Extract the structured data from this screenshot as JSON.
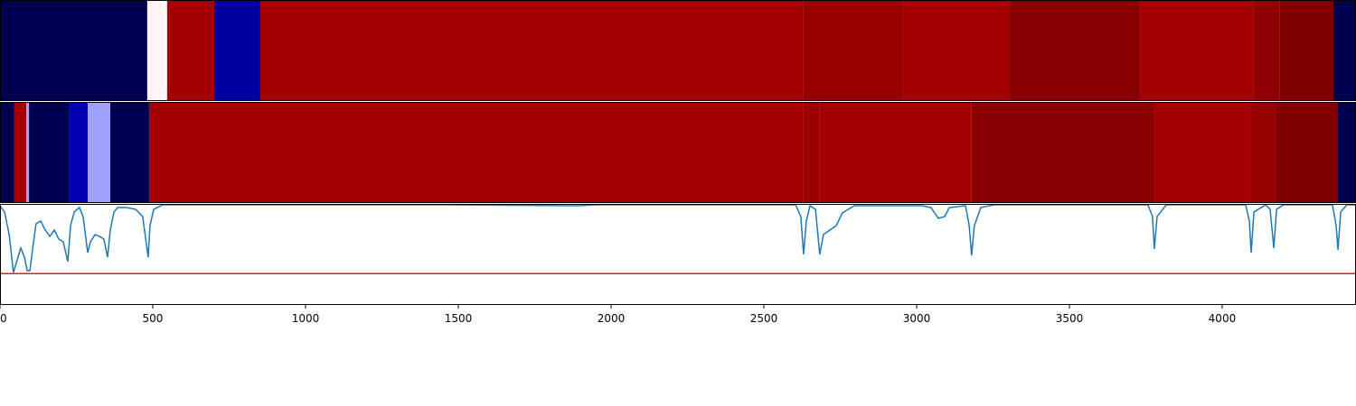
{
  "chart_data": [
    {
      "type": "strip",
      "xlim": [
        0,
        4438
      ],
      "x_edges": [
        0,
        482,
        547,
        701,
        852,
        2630,
        2953,
        3302,
        3731,
        4101,
        4189,
        4364,
        4438
      ],
      "colors": [
        "#000050",
        "#fff5f5",
        "#a50000",
        "#0000a0",
        "#a50000",
        "#990000",
        "#a50000",
        "#8a0000",
        "#a50000",
        "#900000",
        "#800000",
        "#000050"
      ]
    },
    {
      "type": "strip",
      "xlim": [
        0,
        4438
      ],
      "x_edges": [
        0,
        47,
        86,
        95,
        225,
        287,
        361,
        488,
        2630,
        2683,
        3180,
        3778,
        4092,
        4172,
        4379,
        4438
      ],
      "colors": [
        "#000050",
        "#a50000",
        "#a0a0ff",
        "#000050",
        "#0000b0",
        "#a0a0ff",
        "#000050",
        "#a50000",
        "#9a0000",
        "#a50000",
        "#8a0000",
        "#a50000",
        "#950000",
        "#800000",
        "#000050"
      ]
    },
    {
      "type": "line",
      "xlim": [
        0,
        4438
      ],
      "ylim": [
        0,
        1
      ],
      "xticks": [
        0,
        500,
        1000,
        1500,
        2000,
        2500,
        3000,
        3500,
        4000
      ],
      "threshold": 0.31,
      "threshold_color": "#e41a1c",
      "series": [
        {
          "color": "#1f77b4",
          "x": [
            0,
            15,
            30,
            44,
            59,
            68,
            80,
            89,
            98,
            109,
            118,
            133,
            148,
            163,
            178,
            192,
            207,
            222,
            231,
            243,
            260,
            272,
            287,
            296,
            311,
            325,
            340,
            352,
            361,
            373,
            385,
            414,
            444,
            467,
            479,
            485,
            491,
            503,
            533,
            888,
            1479,
            1893,
            1953,
            2604,
            2621,
            2630,
            2639,
            2651,
            2669,
            2683,
            2695,
            2716,
            2737,
            2757,
            2796,
            3018,
            3047,
            3071,
            3092,
            3107,
            3160,
            3172,
            3180,
            3189,
            3210,
            3254,
            3757,
            3772,
            3778,
            3787,
            3817,
            4077,
            4089,
            4095,
            4104,
            4142,
            4157,
            4169,
            4178,
            4201,
            4361,
            4373,
            4379,
            4388,
            4408,
            4438
          ],
          "values": [
            0.982,
            0.92,
            0.696,
            0.321,
            0.473,
            0.563,
            0.473,
            0.339,
            0.339,
            0.607,
            0.804,
            0.83,
            0.741,
            0.679,
            0.741,
            0.652,
            0.625,
            0.429,
            0.786,
            0.92,
            0.964,
            0.875,
            0.518,
            0.625,
            0.696,
            0.679,
            0.652,
            0.473,
            0.741,
            0.92,
            0.964,
            0.964,
            0.946,
            0.875,
            0.607,
            0.473,
            0.786,
            0.946,
            0.991,
            0.991,
            0.991,
            0.982,
            0.991,
            0.991,
            0.875,
            0.5,
            0.83,
            0.982,
            0.946,
            0.5,
            0.696,
            0.741,
            0.786,
            0.911,
            0.982,
            0.982,
            0.964,
            0.857,
            0.875,
            0.964,
            0.982,
            0.786,
            0.491,
            0.786,
            0.964,
            0.991,
            0.991,
            0.875,
            0.554,
            0.875,
            0.991,
            0.991,
            0.83,
            0.518,
            0.92,
            0.991,
            0.946,
            0.563,
            0.946,
            0.991,
            0.991,
            0.786,
            0.545,
            0.92,
            0.991,
            0.991
          ]
        }
      ]
    }
  ]
}
